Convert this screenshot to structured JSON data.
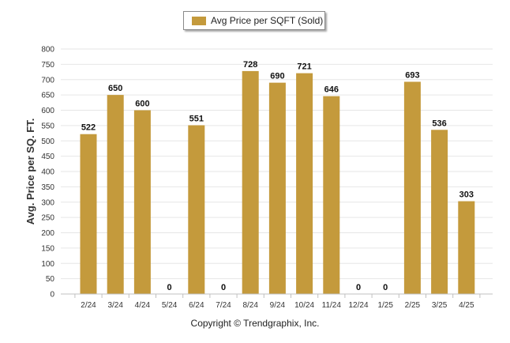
{
  "chart_data": {
    "type": "bar",
    "title": "",
    "xlabel": "",
    "ylabel": "Avg. Price per SQ. FT.",
    "ylim": [
      0,
      800
    ],
    "yticks": [
      0,
      50,
      100,
      150,
      200,
      250,
      300,
      350,
      400,
      450,
      500,
      550,
      600,
      650,
      700,
      750,
      800
    ],
    "grid": true,
    "legend_position": "top-center",
    "categories": [
      "2/24",
      "3/24",
      "4/24",
      "5/24",
      "6/24",
      "7/24",
      "8/24",
      "9/24",
      "10/24",
      "11/24",
      "12/24",
      "1/25",
      "2/25",
      "3/25",
      "4/25"
    ],
    "series": [
      {
        "name": "Avg Price per SQFT (Sold)",
        "color": "#c49a3c",
        "values": [
          522,
          650,
          600,
          0,
          551,
          0,
          728,
          690,
          721,
          646,
          0,
          0,
          693,
          536,
          303
        ]
      }
    ]
  },
  "footer": {
    "copyright": "Copyright © Trendgraphix, Inc."
  }
}
